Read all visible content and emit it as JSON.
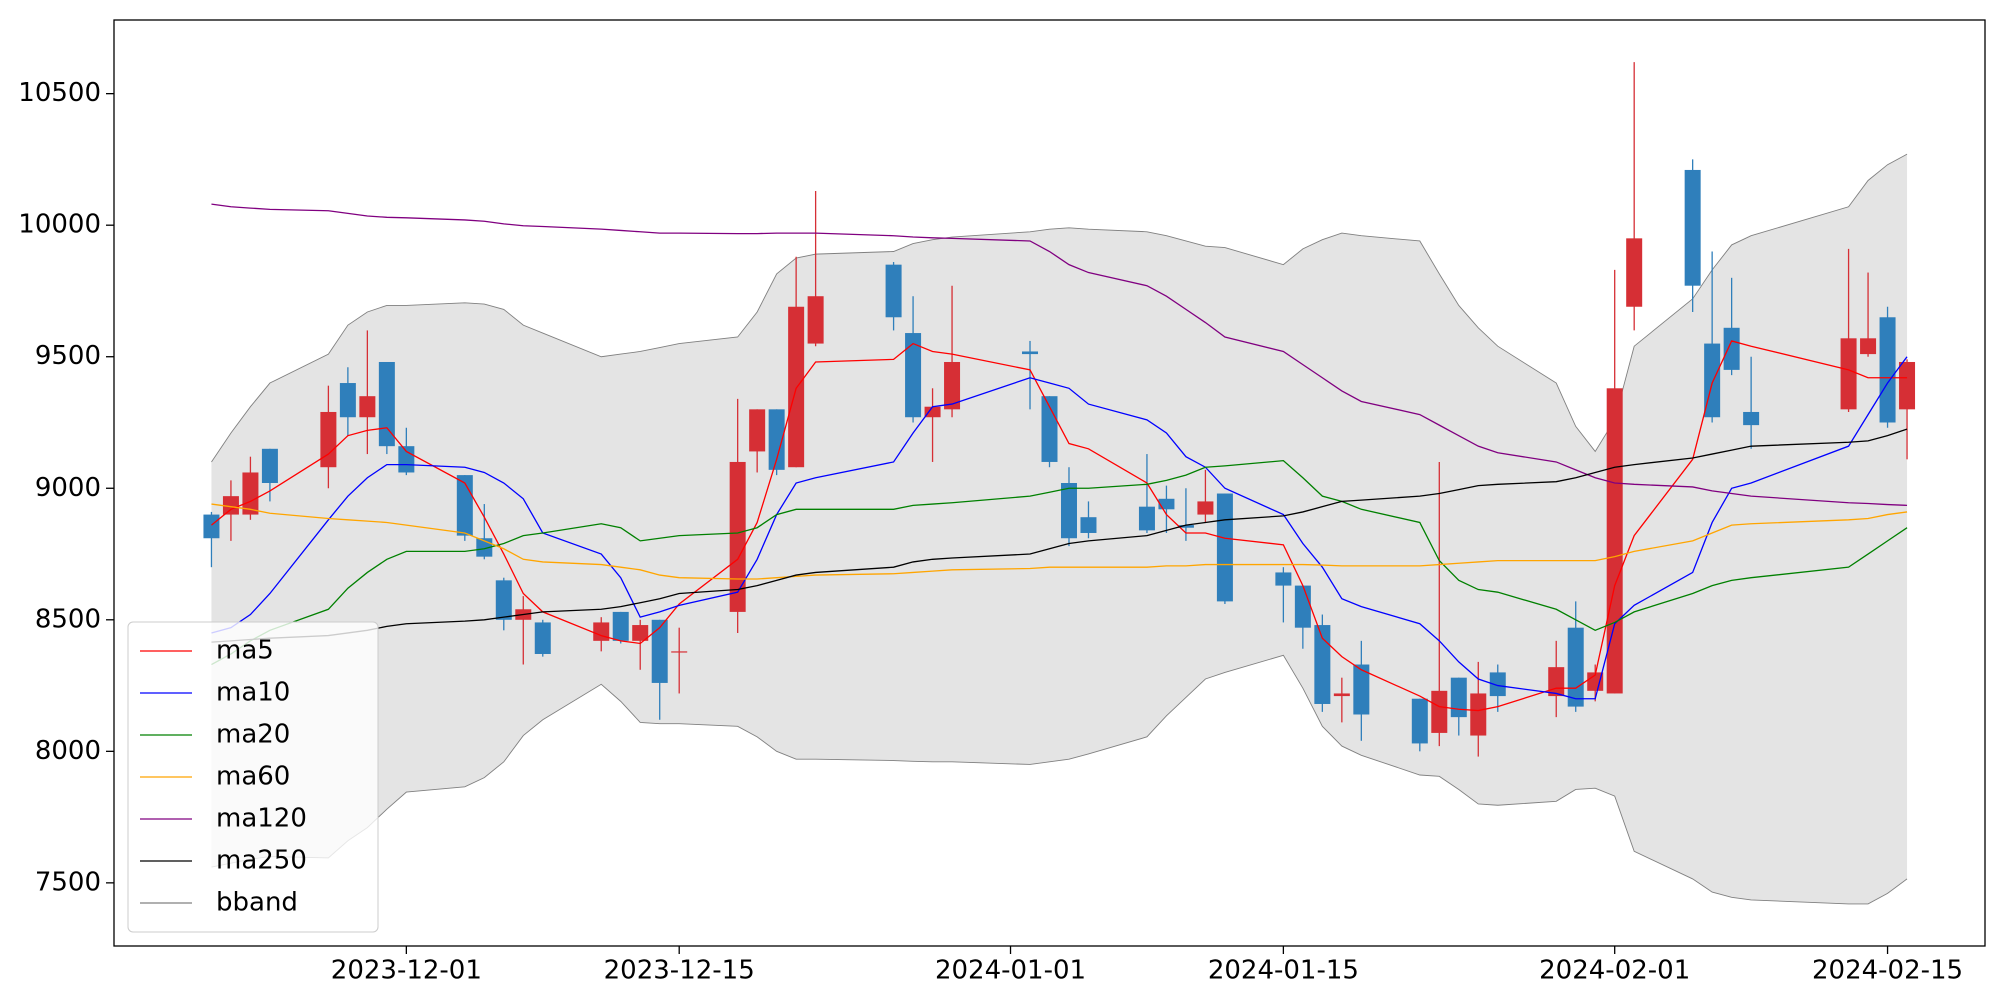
{
  "chart_data": {
    "type": "candlestick",
    "x": [
      "2023-11-21",
      "2023-11-22",
      "2023-11-23",
      "2023-11-24",
      "2023-11-27",
      "2023-11-28",
      "2023-11-29",
      "2023-11-30",
      "2023-12-01",
      "2023-12-04",
      "2023-12-05",
      "2023-12-06",
      "2023-12-07",
      "2023-12-08",
      "2023-12-11",
      "2023-12-12",
      "2023-12-13",
      "2023-12-14",
      "2023-12-15",
      "2023-12-18",
      "2023-12-19",
      "2023-12-20",
      "2023-12-21",
      "2023-12-22",
      "2023-12-26",
      "2023-12-27",
      "2023-12-28",
      "2023-12-29",
      "2024-01-02",
      "2024-01-03",
      "2024-01-04",
      "2024-01-05",
      "2024-01-08",
      "2024-01-09",
      "2024-01-10",
      "2024-01-11",
      "2024-01-12",
      "2024-01-15",
      "2024-01-16",
      "2024-01-17",
      "2024-01-18",
      "2024-01-19",
      "2024-01-22",
      "2024-01-23",
      "2024-01-24",
      "2024-01-25",
      "2024-01-26",
      "2024-01-29",
      "2024-01-30",
      "2024-01-31",
      "2024-02-01",
      "2024-02-02",
      "2024-02-05",
      "2024-02-06",
      "2024-02-07",
      "2024-02-08",
      "2024-02-13",
      "2024-02-14",
      "2024-02-15",
      "2024-02-16"
    ],
    "open": [
      8900,
      8900,
      8900,
      9150,
      9080,
      9400,
      9270,
      9480,
      9160,
      9050,
      8810,
      8650,
      8500,
      8490,
      8420,
      8530,
      8420,
      8500,
      8380,
      8530,
      9140,
      9300,
      9080,
      9550,
      9850,
      9590,
      9270,
      9300,
      9520,
      9350,
      9020,
      8890,
      8930,
      8960,
      8860,
      8900,
      8980,
      8680,
      8630,
      8480,
      8210,
      8330,
      8200,
      8070,
      8280,
      8060,
      8300,
      8210,
      8470,
      8230,
      8220,
      9690,
      10210,
      9550,
      9610,
      9290,
      9300,
      9510,
      9650,
      9300
    ],
    "high": [
      8910,
      9030,
      9120,
      9150,
      9390,
      9460,
      9600,
      9480,
      9230,
      9050,
      8940,
      8660,
      8590,
      8500,
      8510,
      8530,
      8500,
      8500,
      8470,
      9340,
      9300,
      9300,
      9880,
      10130,
      9860,
      9730,
      9380,
      9770,
      9560,
      9350,
      9080,
      8950,
      9130,
      9010,
      9000,
      9070,
      8980,
      8700,
      8630,
      8520,
      8280,
      8420,
      8200,
      9100,
      8280,
      8340,
      8330,
      8420,
      8570,
      8330,
      9830,
      10620,
      10250,
      9900,
      9800,
      9500,
      9910,
      9820,
      9690,
      9490
    ],
    "low": [
      8700,
      8800,
      8880,
      8950,
      9000,
      9200,
      9130,
      9130,
      9050,
      8800,
      8730,
      8460,
      8330,
      8360,
      8380,
      8410,
      8310,
      8120,
      8220,
      8450,
      9060,
      9050,
      9080,
      9540,
      9600,
      9250,
      9100,
      9270,
      9300,
      9080,
      8780,
      8810,
      8830,
      8830,
      8800,
      8870,
      8560,
      8490,
      8390,
      8150,
      8110,
      8040,
      8000,
      8020,
      8060,
      7980,
      8150,
      8130,
      8150,
      8190,
      8220,
      9600,
      9670,
      9250,
      9430,
      9150,
      9290,
      9500,
      9230,
      9110
    ],
    "close": [
      8810,
      8970,
      9060,
      9020,
      9290,
      9270,
      9350,
      9160,
      9060,
      8820,
      8740,
      8500,
      8540,
      8370,
      8490,
      8420,
      8480,
      8260,
      8380,
      9100,
      9300,
      9070,
      9690,
      9730,
      9650,
      9270,
      9310,
      9480,
      9510,
      9100,
      8810,
      8830,
      8840,
      8920,
      8850,
      8950,
      8570,
      8630,
      8470,
      8180,
      8220,
      8140,
      8030,
      8230,
      8130,
      8220,
      8210,
      8320,
      8170,
      8300,
      9380,
      9950,
      9770,
      9270,
      9450,
      9240,
      9570,
      9570,
      9250,
      9480
    ],
    "up_color": "#d62f35",
    "down_color": "#2f7fbb",
    "series": [
      {
        "name": "ma5",
        "color": "#ff0000",
        "values": [
          8860,
          8920,
          8950,
          8990,
          9130,
          9200,
          9220,
          9230,
          9140,
          9020,
          8890,
          8750,
          8600,
          8530,
          8440,
          8420,
          8410,
          8470,
          8560,
          8730,
          8870,
          9110,
          9380,
          9480,
          9490,
          9550,
          9520,
          9510,
          9450,
          9310,
          9170,
          9150,
          9020,
          8900,
          8830,
          8830,
          8810,
          8785,
          8630,
          8430,
          8360,
          8310,
          8210,
          8170,
          8160,
          8155,
          8170,
          8240,
          8240,
          8290,
          8630,
          8820,
          9110,
          9400,
          9560,
          9540,
          9450,
          9420,
          9420,
          9420
        ]
      },
      {
        "name": "ma10",
        "color": "#0000ff",
        "values": [
          8450,
          8470,
          8520,
          8600,
          8880,
          8970,
          9040,
          9090,
          9090,
          9080,
          9060,
          9020,
          8960,
          8830,
          8750,
          8660,
          8510,
          8530,
          8555,
          8605,
          8730,
          8900,
          9020,
          9040,
          9100,
          9210,
          9310,
          9320,
          9420,
          9400,
          9380,
          9320,
          9260,
          9210,
          9120,
          9080,
          9000,
          8900,
          8790,
          8700,
          8580,
          8550,
          8485,
          8420,
          8340,
          8275,
          8250,
          8220,
          8200,
          8200,
          8485,
          8555,
          8680,
          8870,
          9000,
          9020,
          9160,
          9280,
          9400,
          9500
        ]
      },
      {
        "name": "ma20",
        "color": "#008000",
        "values": [
          8330,
          8370,
          8420,
          8460,
          8540,
          8620,
          8680,
          8730,
          8760,
          8760,
          8770,
          8790,
          8820,
          8830,
          8865,
          8850,
          8800,
          8810,
          8820,
          8830,
          8850,
          8900,
          8920,
          8920,
          8920,
          8935,
          8940,
          8945,
          8970,
          8985,
          9000,
          9000,
          9015,
          9030,
          9050,
          9080,
          9085,
          9105,
          9040,
          8970,
          8950,
          8920,
          8870,
          8725,
          8650,
          8615,
          8605,
          8540,
          8500,
          8460,
          8490,
          8530,
          8600,
          8630,
          8650,
          8660,
          8700,
          8750,
          8800,
          8850
        ]
      },
      {
        "name": "ma60",
        "color": "#ffa500",
        "values": [
          8940,
          8930,
          8920,
          8905,
          8885,
          8880,
          8875,
          8870,
          8860,
          8830,
          8800,
          8770,
          8730,
          8720,
          8710,
          8700,
          8690,
          8670,
          8660,
          8655,
          8655,
          8660,
          8665,
          8670,
          8675,
          8680,
          8685,
          8690,
          8695,
          8700,
          8700,
          8700,
          8700,
          8705,
          8705,
          8710,
          8710,
          8710,
          8710,
          8708,
          8705,
          8705,
          8705,
          8710,
          8715,
          8720,
          8725,
          8725,
          8725,
          8725,
          8740,
          8760,
          8800,
          8830,
          8860,
          8865,
          8880,
          8885,
          8900,
          8910
        ]
      },
      {
        "name": "ma120",
        "color": "#800080",
        "values": [
          10080,
          10070,
          10065,
          10060,
          10055,
          10045,
          10035,
          10030,
          10028,
          10020,
          10015,
          10005,
          9998,
          9995,
          9985,
          9980,
          9975,
          9970,
          9970,
          9968,
          9968,
          9970,
          9970,
          9970,
          9960,
          9955,
          9952,
          9950,
          9940,
          9900,
          9850,
          9820,
          9770,
          9730,
          9680,
          9630,
          9575,
          9520,
          9470,
          9420,
          9370,
          9330,
          9280,
          9240,
          9200,
          9160,
          9135,
          9100,
          9070,
          9040,
          9020,
          9015,
          9005,
          8990,
          8980,
          8970,
          8945,
          8942,
          8938,
          8935
        ]
      },
      {
        "name": "ma250",
        "color": "#000000",
        "values": [
          8415,
          8420,
          8425,
          8430,
          8440,
          8450,
          8460,
          8475,
          8485,
          8495,
          8500,
          8510,
          8520,
          8530,
          8540,
          8550,
          8565,
          8580,
          8600,
          8615,
          8630,
          8650,
          8670,
          8680,
          8700,
          8720,
          8730,
          8735,
          8750,
          8770,
          8790,
          8800,
          8820,
          8840,
          8860,
          8870,
          8880,
          8895,
          8910,
          8930,
          8950,
          8955,
          8970,
          8980,
          8995,
          9010,
          9015,
          9025,
          9040,
          9060,
          9080,
          9090,
          9115,
          9130,
          9145,
          9160,
          9175,
          9180,
          9200,
          9225
        ]
      }
    ],
    "bband": {
      "name": "bband",
      "color": "#808080",
      "fill": "#e4e4e4",
      "upper": [
        9100,
        9210,
        9310,
        9400,
        9510,
        9620,
        9670,
        9695,
        9695,
        9705,
        9700,
        9680,
        9620,
        9590,
        9500,
        9510,
        9520,
        9535,
        9550,
        9575,
        9670,
        9815,
        9875,
        9890,
        9900,
        9930,
        9945,
        9955,
        9975,
        9985,
        9990,
        9985,
        9975,
        9960,
        9940,
        9920,
        9915,
        9850,
        9910,
        9945,
        9970,
        9960,
        9940,
        9815,
        9695,
        9610,
        9540,
        9400,
        9235,
        9140,
        9260,
        9540,
        9720,
        9830,
        9925,
        9960,
        10070,
        10170,
        10230,
        10270
      ],
      "lower": [
        7560,
        7575,
        7590,
        7600,
        7595,
        7660,
        7710,
        7780,
        7845,
        7865,
        7900,
        7960,
        8060,
        8120,
        8255,
        8190,
        8110,
        8105,
        8105,
        8095,
        8055,
        8000,
        7970,
        7970,
        7965,
        7962,
        7960,
        7960,
        7950,
        7960,
        7970,
        7990,
        8055,
        8135,
        8205,
        8275,
        8300,
        8365,
        8240,
        8095,
        8020,
        7985,
        7910,
        7905,
        7855,
        7800,
        7795,
        7810,
        7855,
        7860,
        7830,
        7620,
        7515,
        7465,
        7445,
        7435,
        7420,
        7420,
        7460,
        7515
      ]
    },
    "xlim": [
      "2023-11-16",
      "2024-02-20"
    ],
    "xticks": [
      "2023-12-01",
      "2023-12-15",
      "2024-01-01",
      "2024-01-15",
      "2024-02-01",
      "2024-02-15"
    ],
    "ylim": [
      7260,
      10780
    ],
    "yticks": [
      7500,
      8000,
      8500,
      9000,
      9500,
      10000,
      10500
    ],
    "legend": "lower left"
  }
}
